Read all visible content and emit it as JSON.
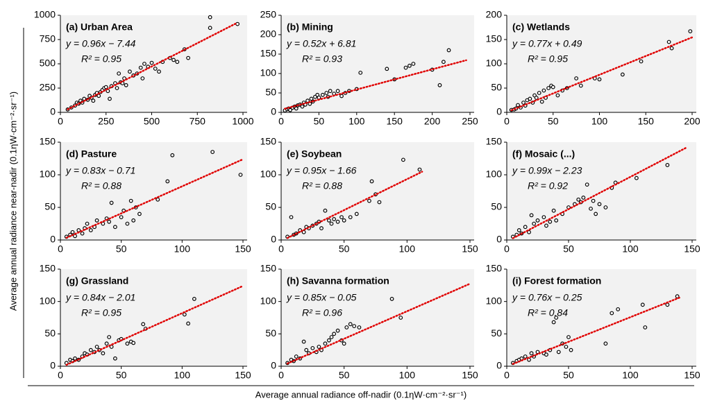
{
  "x_label": "Average annual radiance off-nadir (0.1ηW·cm⁻²·sr⁻¹)",
  "y_label": "Average annual radiance near-nadir (0.1ηW·cm⁻²·sr⁻¹)",
  "chart_data": [
    {
      "type": "scatter",
      "title": "(a) Urban Area",
      "x": [
        40,
        60,
        80,
        90,
        100,
        110,
        120,
        130,
        150,
        160,
        170,
        180,
        190,
        200,
        210,
        220,
        230,
        240,
        250,
        260,
        270,
        280,
        300,
        310,
        320,
        330,
        340,
        350,
        360,
        380,
        400,
        420,
        440,
        450,
        460,
        480,
        500,
        520,
        540,
        560,
        600,
        620,
        640,
        680,
        700,
        820,
        820,
        970
      ],
      "values": [
        30,
        50,
        70,
        100,
        90,
        120,
        100,
        140,
        130,
        170,
        150,
        120,
        180,
        200,
        170,
        210,
        230,
        250,
        260,
        220,
        140,
        270,
        300,
        250,
        400,
        310,
        300,
        350,
        280,
        420,
        380,
        400,
        460,
        350,
        500,
        470,
        510,
        450,
        420,
        520,
        560,
        540,
        520,
        650,
        560,
        980,
        870,
        910
      ],
      "color": "#000000",
      "trendline": {
        "equation": "y = 0.96x − 7.44",
        "r2": "R² = 0.95",
        "slope": 0.96,
        "intercept": -7.44,
        "x_range": [
          40,
          960
        ],
        "color": "#e00000"
      },
      "xlim": [
        0,
        1000
      ],
      "xticks": [
        0,
        250,
        500,
        750,
        1000
      ],
      "ylim": [
        0,
        1000
      ],
      "yticks": [
        0,
        250,
        500,
        750,
        1000
      ]
    },
    {
      "type": "scatter",
      "title": "(b) Mining",
      "x": [
        5,
        8,
        10,
        12,
        15,
        18,
        20,
        22,
        25,
        28,
        30,
        32,
        35,
        38,
        40,
        42,
        45,
        48,
        50,
        55,
        60,
        62,
        65,
        70,
        75,
        80,
        85,
        90,
        100,
        105,
        140,
        150,
        165,
        170,
        175,
        200,
        210,
        215,
        222
      ],
      "values": [
        5,
        8,
        10,
        6,
        12,
        15,
        10,
        18,
        20,
        15,
        25,
        20,
        30,
        22,
        35,
        28,
        40,
        45,
        38,
        45,
        50,
        40,
        55,
        48,
        55,
        42,
        50,
        55,
        60,
        102,
        112,
        85,
        115,
        120,
        125,
        110,
        70,
        130,
        160
      ],
      "color": "#000000",
      "trendline": {
        "equation": "y = 0.52x + 6.81",
        "r2": "R² = 0.93",
        "slope": 0.52,
        "intercept": 6.81,
        "x_range": [
          5,
          245
        ],
        "color": "#e00000"
      },
      "xlim": [
        0,
        250
      ],
      "xticks": [
        0,
        50,
        100,
        150,
        200,
        250
      ],
      "ylim": [
        0,
        250
      ],
      "yticks": [
        0,
        50,
        100,
        150,
        200,
        250
      ]
    },
    {
      "type": "scatter",
      "title": "(c) Wetlands",
      "x": [
        5,
        8,
        10,
        12,
        15,
        18,
        20,
        22,
        25,
        28,
        30,
        32,
        35,
        38,
        40,
        42,
        45,
        48,
        50,
        55,
        60,
        65,
        75,
        80,
        95,
        100,
        125,
        145,
        175,
        178,
        198
      ],
      "values": [
        5,
        6,
        8,
        15,
        10,
        20,
        14,
        25,
        28,
        20,
        35,
        30,
        40,
        22,
        45,
        30,
        50,
        55,
        52,
        35,
        45,
        50,
        70,
        55,
        70,
        68,
        78,
        105,
        145,
        132,
        167
      ],
      "color": "#000000",
      "trendline": {
        "equation": "y = 0.77x + 0.49",
        "r2": "R² = 0.95",
        "slope": 0.77,
        "intercept": 0.49,
        "x_range": [
          5,
          200
        ],
        "color": "#e00000"
      },
      "xlim": [
        0,
        200
      ],
      "xticks": [
        0,
        50,
        100,
        150,
        200
      ],
      "ylim": [
        0,
        200
      ],
      "yticks": [
        0,
        50,
        100,
        150,
        200
      ]
    },
    {
      "type": "scatter",
      "title": "(d) Pasture",
      "x": [
        5,
        8,
        10,
        12,
        15,
        18,
        20,
        22,
        25,
        28,
        30,
        35,
        38,
        40,
        42,
        45,
        50,
        52,
        55,
        58,
        60,
        62,
        65,
        80,
        88,
        92,
        125,
        148
      ],
      "values": [
        5,
        8,
        12,
        6,
        15,
        10,
        18,
        25,
        15,
        20,
        30,
        25,
        33,
        28,
        57,
        20,
        35,
        45,
        25,
        60,
        30,
        50,
        40,
        62,
        90,
        130,
        135,
        100
      ],
      "color": "#000000",
      "trendline": {
        "equation": "y = 0.83x − 0.71",
        "r2": "R² = 0.88",
        "slope": 0.83,
        "intercept": -0.71,
        "x_range": [
          5,
          150
        ],
        "color": "#e00000"
      },
      "xlim": [
        0,
        150
      ],
      "xticks": [
        0,
        50,
        100,
        150
      ],
      "ylim": [
        0,
        150
      ],
      "yticks": [
        0,
        50,
        100,
        150
      ]
    },
    {
      "type": "scatter",
      "title": "(e) Soybean",
      "x": [
        5,
        8,
        10,
        12,
        15,
        18,
        20,
        22,
        25,
        28,
        30,
        32,
        35,
        38,
        40,
        42,
        45,
        48,
        50,
        55,
        60,
        70,
        72,
        75,
        78,
        97,
        110
      ],
      "values": [
        5,
        35,
        8,
        10,
        15,
        12,
        20,
        18,
        22,
        25,
        28,
        18,
        45,
        30,
        25,
        32,
        28,
        35,
        30,
        35,
        40,
        60,
        90,
        70,
        58,
        123,
        108
      ],
      "color": "#000000",
      "trendline": {
        "equation": "y = 0.95x − 1.66",
        "r2": "R² = 0.88",
        "slope": 0.95,
        "intercept": -1.66,
        "x_range": [
          5,
          112
        ],
        "color": "#e00000"
      },
      "xlim": [
        0,
        150
      ],
      "xticks": [
        0,
        50,
        100,
        150
      ],
      "ylim": [
        0,
        150
      ],
      "yticks": [
        0,
        50,
        100,
        150
      ]
    },
    {
      "type": "scatter",
      "title": "(f) Mosaic (...)",
      "x": [
        5,
        8,
        10,
        12,
        15,
        18,
        20,
        22,
        25,
        30,
        32,
        35,
        38,
        40,
        45,
        50,
        55,
        58,
        60,
        62,
        65,
        68,
        70,
        72,
        75,
        80,
        85,
        88,
        105,
        130
      ],
      "values": [
        5,
        8,
        15,
        10,
        20,
        12,
        38,
        25,
        30,
        35,
        22,
        28,
        45,
        30,
        40,
        50,
        55,
        62,
        58,
        65,
        85,
        48,
        60,
        40,
        55,
        50,
        80,
        88,
        95,
        115
      ],
      "color": "#000000",
      "trendline": {
        "equation": "y = 0.99x − 2.23",
        "r2": "R² = 0.92",
        "slope": 0.99,
        "intercept": -2.23,
        "x_range": [
          5,
          145
        ],
        "color": "#e00000"
      },
      "xlim": [
        0,
        150
      ],
      "xticks": [
        0,
        50,
        100,
        150
      ],
      "ylim": [
        0,
        150
      ],
      "yticks": [
        0,
        50,
        100,
        150
      ]
    },
    {
      "type": "scatter",
      "title": "(g) Grassland",
      "x": [
        5,
        8,
        10,
        12,
        15,
        18,
        20,
        22,
        25,
        28,
        30,
        32,
        35,
        38,
        40,
        42,
        45,
        48,
        50,
        55,
        58,
        60,
        68,
        70,
        102,
        105,
        110
      ],
      "values": [
        5,
        10,
        8,
        12,
        10,
        15,
        20,
        18,
        25,
        22,
        30,
        25,
        20,
        35,
        45,
        30,
        12,
        40,
        42,
        35,
        38,
        36,
        65,
        58,
        80,
        66,
        104
      ],
      "color": "#000000",
      "trendline": {
        "equation": "y = 0.84x − 2.01",
        "r2": "R² = 0.95",
        "slope": 0.84,
        "intercept": -2.01,
        "x_range": [
          5,
          150
        ],
        "color": "#e00000"
      },
      "xlim": [
        0,
        150
      ],
      "xticks": [
        0,
        50,
        100,
        150
      ],
      "ylim": [
        0,
        150
      ],
      "yticks": [
        0,
        50,
        100,
        150
      ]
    },
    {
      "type": "scatter",
      "title": "(h) Savanna formation",
      "x": [
        5,
        8,
        10,
        12,
        15,
        18,
        20,
        22,
        25,
        28,
        30,
        32,
        35,
        38,
        40,
        42,
        45,
        48,
        50,
        52,
        55,
        58,
        62,
        88,
        95
      ],
      "values": [
        5,
        10,
        8,
        15,
        12,
        38,
        25,
        20,
        28,
        22,
        30,
        25,
        35,
        40,
        45,
        50,
        55,
        40,
        35,
        60,
        65,
        62,
        60,
        104,
        75
      ],
      "color": "#000000",
      "trendline": {
        "equation": "y = 0.85x − 0.05",
        "r2": "R² = 0.96",
        "slope": 0.85,
        "intercept": -0.05,
        "x_range": [
          5,
          150
        ],
        "color": "#e00000"
      },
      "xlim": [
        0,
        150
      ],
      "xticks": [
        0,
        50,
        100,
        150
      ],
      "ylim": [
        0,
        150
      ],
      "yticks": [
        0,
        50,
        100,
        150
      ]
    },
    {
      "type": "scatter",
      "title": "(i) Forest formation",
      "x": [
        5,
        8,
        10,
        12,
        15,
        18,
        20,
        22,
        25,
        30,
        32,
        35,
        38,
        40,
        42,
        45,
        48,
        50,
        52,
        80,
        85,
        90,
        110,
        112,
        130,
        138
      ],
      "values": [
        5,
        8,
        10,
        12,
        15,
        10,
        20,
        15,
        22,
        20,
        18,
        25,
        68,
        75,
        22,
        35,
        30,
        45,
        25,
        35,
        82,
        88,
        95,
        60,
        95,
        108
      ],
      "color": "#000000",
      "trendline": {
        "equation": "y = 0.76x − 0.25",
        "r2": "R² = 0.84",
        "slope": 0.76,
        "intercept": -0.25,
        "x_range": [
          5,
          140
        ],
        "color": "#e00000"
      },
      "xlim": [
        0,
        150
      ],
      "xticks": [
        0,
        50,
        100,
        150
      ],
      "ylim": [
        0,
        150
      ],
      "yticks": [
        0,
        50,
        100,
        150
      ]
    }
  ]
}
